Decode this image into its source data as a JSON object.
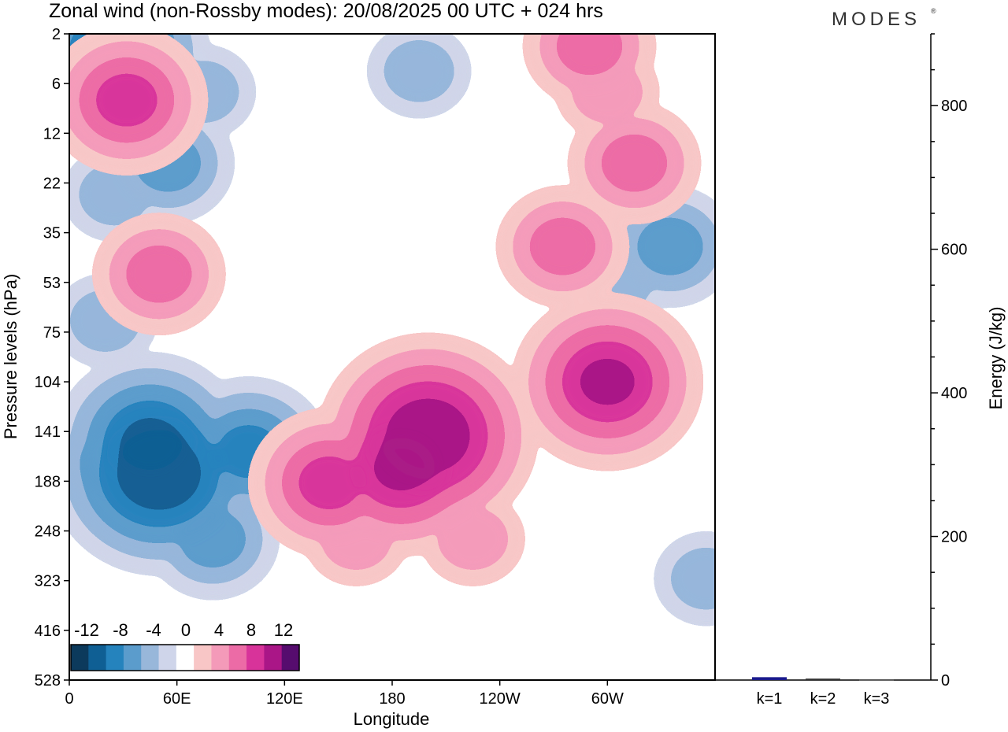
{
  "chart_data": {
    "type": "heatmap",
    "title": "Zonal wind (non-Rossby modes):  20/08/2025  00 UTC  + 024 hrs",
    "xlabel": "Longitude",
    "ylabel": "Pressure levels (hPa)",
    "x_ticks": [
      "0",
      "60E",
      "120E",
      "180",
      "120W",
      "60W"
    ],
    "x_tick_degrees": [
      0,
      60,
      120,
      180,
      240,
      300
    ],
    "x_range_degrees": [
      0,
      360
    ],
    "y_ticks": [
      "2",
      "6",
      "12",
      "22",
      "35",
      "53",
      "75",
      "104",
      "141",
      "188",
      "248",
      "323",
      "416",
      "528"
    ],
    "colorbar": {
      "labels": [
        "-12",
        "-8",
        "-4",
        "0",
        "4",
        "8",
        "12"
      ],
      "levels": [
        -14,
        -12,
        -10,
        -8,
        -6,
        -4,
        -2,
        2,
        4,
        6,
        8,
        10,
        12,
        14
      ],
      "colors": [
        "#0c3a5c",
        "#0f5f94",
        "#2583bd",
        "#5b9ccc",
        "#98b7da",
        "#cfd5ea",
        "#ffffff",
        "#f8c6c6",
        "#f49ab9",
        "#ec6ba6",
        "#d8339a",
        "#aa1687",
        "#560c6e"
      ]
    },
    "field_features": [
      {
        "lon": 25,
        "p": 3.5,
        "value": -9
      },
      {
        "lon": 32,
        "p": 8,
        "value": 7
      },
      {
        "lon": 75,
        "p": 7,
        "value": -4
      },
      {
        "lon": 55,
        "p": 18,
        "value": -5
      },
      {
        "lon": 25,
        "p": 25,
        "value": -3
      },
      {
        "lon": 50,
        "p": 50,
        "value": 5
      },
      {
        "lon": 20,
        "p": 70,
        "value": -4
      },
      {
        "lon": 50,
        "p": 180,
        "value": -13
      },
      {
        "lon": 45,
        "p": 150,
        "value": -10
      },
      {
        "lon": 100,
        "p": 160,
        "value": -8
      },
      {
        "lon": 80,
        "p": 260,
        "value": -5
      },
      {
        "lon": 25,
        "p": 170,
        "value": -6
      },
      {
        "lon": 145,
        "p": 190,
        "value": 7
      },
      {
        "lon": 185,
        "p": 175,
        "value": 10
      },
      {
        "lon": 200,
        "p": 145,
        "value": 12
      },
      {
        "lon": 160,
        "p": 260,
        "value": 3
      },
      {
        "lon": 225,
        "p": 260,
        "value": 4
      },
      {
        "lon": 300,
        "p": 104,
        "value": 10
      },
      {
        "lon": 275,
        "p": 40,
        "value": 6
      },
      {
        "lon": 315,
        "p": 18,
        "value": 6
      },
      {
        "lon": 335,
        "p": 40,
        "value": -5
      },
      {
        "lon": 305,
        "p": 53,
        "value": -3
      },
      {
        "lon": 300,
        "p": 7,
        "value": 4
      },
      {
        "lon": 355,
        "p": 320,
        "value": -4
      },
      {
        "lon": 195,
        "p": 5,
        "value": -4
      },
      {
        "lon": 290,
        "p": 3,
        "value": 5
      }
    ],
    "energy_bars": {
      "ylabel": "Energy (J/kg)",
      "y_ticks": [
        "0",
        "200",
        "400",
        "600",
        "800"
      ],
      "ylim": [
        0,
        900
      ],
      "categories": [
        "k=1",
        "k=2",
        "k=3"
      ],
      "values": [
        4,
        2,
        1
      ],
      "colors": [
        "#1a1a8c",
        "#303030",
        "#505050"
      ]
    }
  },
  "brand": "MODES"
}
